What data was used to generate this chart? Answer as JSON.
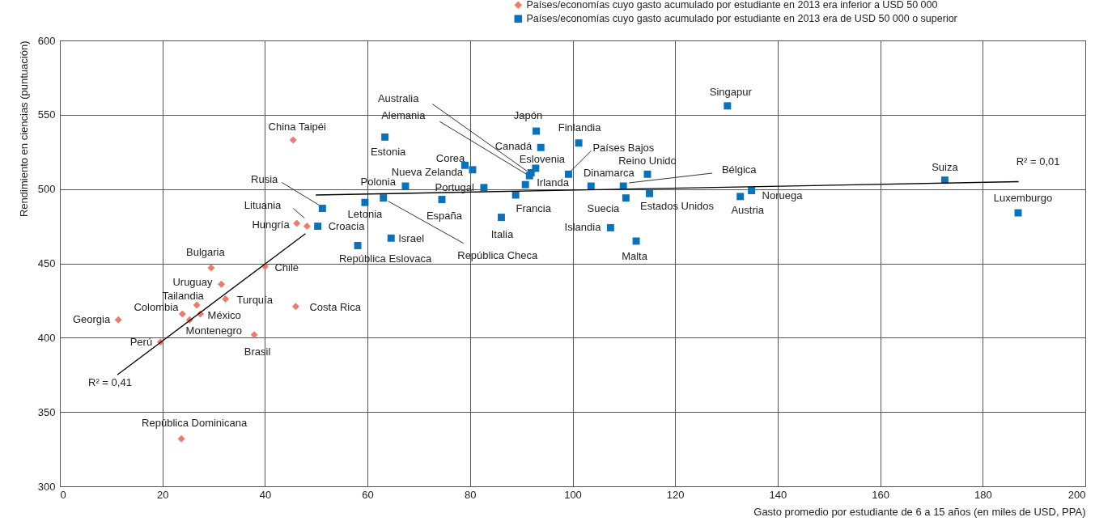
{
  "chart_data": {
    "type": "scatter",
    "xlabel": "Gasto promedio por estudiante de 6 a 15 años (en miles de USD, PPA)",
    "ylabel": "Rendimiento en ciencias (puntuación)",
    "xlim": [
      0,
      200
    ],
    "xticks": [
      0,
      20,
      40,
      60,
      80,
      100,
      120,
      140,
      160,
      180,
      200
    ],
    "ylim": [
      300,
      600
    ],
    "yticks": [
      300,
      350,
      400,
      450,
      500,
      550,
      600
    ],
    "grid": true,
    "legend": "top right",
    "series": [
      {
        "name": "Países/economías cuyo gasto acumulado por estudiante en 2013 era inferior a USD 50 000",
        "color": "#f07a6a",
        "marker": "diamond",
        "x": [
          11.4,
          19.6,
          23.9,
          25.3,
          26.7,
          27.4,
          23.7,
          31.5,
          32.3,
          29.5,
          37.9,
          40.0,
          46.0,
          45.5,
          46.2,
          48.2
        ],
        "values": [
          412,
          397,
          416,
          412,
          422,
          416,
          332,
          436,
          426,
          447,
          402,
          448,
          421,
          533,
          477,
          475
        ]
      },
      {
        "name": "Países/economías cuyo gasto acumulado por estudiante en 2013 era de USD 50 000 o superior",
        "color": "#0a72ba",
        "marker": "square",
        "x": [
          50.3,
          51.2,
          58.1,
          59.5,
          63.1,
          63.4,
          64.6,
          67.4,
          74.5,
          79.0,
          80.5,
          82.7,
          86.1,
          88.9,
          90.8,
          91.6,
          91.9,
          92.8,
          92.9,
          93.8,
          99.2,
          101.2,
          103.6,
          107.4,
          109.9,
          110.4,
          112.4,
          114.6,
          115.0,
          130.2,
          132.7,
          134.9,
          172.6,
          186.9
        ],
        "values": [
          475,
          487,
          462,
          491,
          494,
          535,
          467,
          502,
          493,
          516,
          513,
          501,
          481,
          496,
          503,
          509,
          511,
          514,
          539,
          528,
          510,
          531,
          502,
          474,
          502,
          494,
          465,
          510,
          497,
          556,
          495,
          499,
          506,
          484
        ]
      },
      {
        "type": "line",
        "color": "#000000",
        "x": [
          11.2,
          47.9
        ],
        "values": [
          375,
          470
        ]
      },
      {
        "type": "line",
        "color": "#000000",
        "x": [
          49.9,
          187
        ],
        "values": [
          496,
          505
        ]
      }
    ],
    "annotations": [
      {
        "text": "Georgia",
        "x": 11.4,
        "y": 412
      },
      {
        "text": "Perú",
        "x": 19.6,
        "y": 397
      },
      {
        "text": "Colombia",
        "x": 23.9,
        "y": 416
      },
      {
        "text": "Montenegro",
        "x": 25.3,
        "y": 412
      },
      {
        "text": "Tailandia",
        "x": 26.7,
        "y": 422
      },
      {
        "text": "México",
        "x": 27.4,
        "y": 416
      },
      {
        "text": "República Dominicana",
        "x": 23.7,
        "y": 332
      },
      {
        "text": "Uruguay",
        "x": 31.5,
        "y": 436
      },
      {
        "text": "Turquía",
        "x": 32.3,
        "y": 426
      },
      {
        "text": "Bulgaria",
        "x": 29.5,
        "y": 447
      },
      {
        "text": "Brasil",
        "x": 37.9,
        "y": 402
      },
      {
        "text": "Chile",
        "x": 40.0,
        "y": 448
      },
      {
        "text": "Costa Rica",
        "x": 46.0,
        "y": 421
      },
      {
        "text": "China Taipéi",
        "x": 45.5,
        "y": 533
      },
      {
        "text": "Hungría",
        "x": 46.2,
        "y": 477
      },
      {
        "text": "Lituania",
        "x": 48.2,
        "y": 475
      },
      {
        "text": "Croacia",
        "x": 50.3,
        "y": 475
      },
      {
        "text": "Rusia",
        "x": 51.2,
        "y": 487
      },
      {
        "text": "República Eslovaca",
        "x": 58.1,
        "y": 462
      },
      {
        "text": "Letonia",
        "x": 59.5,
        "y": 491
      },
      {
        "text": "República Checa",
        "x": 63.1,
        "y": 494
      },
      {
        "text": "Estonia",
        "x": 63.4,
        "y": 535
      },
      {
        "text": "Israel",
        "x": 64.6,
        "y": 467
      },
      {
        "text": "Polonia",
        "x": 67.4,
        "y": 502
      },
      {
        "text": "España",
        "x": 74.5,
        "y": 493
      },
      {
        "text": "Corea",
        "x": 79.0,
        "y": 516
      },
      {
        "text": "Nueva Zelanda",
        "x": 80.5,
        "y": 513
      },
      {
        "text": "Portugal",
        "x": 82.7,
        "y": 501
      },
      {
        "text": "Italia",
        "x": 86.1,
        "y": 481
      },
      {
        "text": "Francia",
        "x": 88.9,
        "y": 496
      },
      {
        "text": "Irlanda",
        "x": 90.8,
        "y": 503
      },
      {
        "text": "Alemania",
        "x": 91.6,
        "y": 509
      },
      {
        "text": "Australia",
        "x": 91.9,
        "y": 511
      },
      {
        "text": "Eslovenia",
        "x": 92.8,
        "y": 514
      },
      {
        "text": "Japón",
        "x": 92.9,
        "y": 539
      },
      {
        "text": "Canadá",
        "x": 93.8,
        "y": 528
      },
      {
        "text": "Países Bajos",
        "x": 99.2,
        "y": 510
      },
      {
        "text": "Finlandia",
        "x": 101.2,
        "y": 531
      },
      {
        "text": "Dinamarca",
        "x": 103.6,
        "y": 502
      },
      {
        "text": "Islandia",
        "x": 107.4,
        "y": 474
      },
      {
        "text": "Bélgica",
        "x": 109.9,
        "y": 502
      },
      {
        "text": "Suecia",
        "x": 110.4,
        "y": 494
      },
      {
        "text": "Malta",
        "x": 112.4,
        "y": 465
      },
      {
        "text": "Reino Unido",
        "x": 114.6,
        "y": 510
      },
      {
        "text": "Estados Unidos",
        "x": 115.0,
        "y": 497
      },
      {
        "text": "Singapur",
        "x": 130.2,
        "y": 556
      },
      {
        "text": "Austria",
        "x": 132.7,
        "y": 495
      },
      {
        "text": "Noruega",
        "x": 134.9,
        "y": 499
      },
      {
        "text": "Suiza",
        "x": 172.6,
        "y": 506
      },
      {
        "text": "Luxemburgo",
        "x": 186.9,
        "y": 484
      },
      {
        "text": "R² = 0,41",
        "x": 11.2,
        "y": 375
      },
      {
        "text": "R² = 0,01",
        "x": 187,
        "y": 505
      }
    ]
  }
}
